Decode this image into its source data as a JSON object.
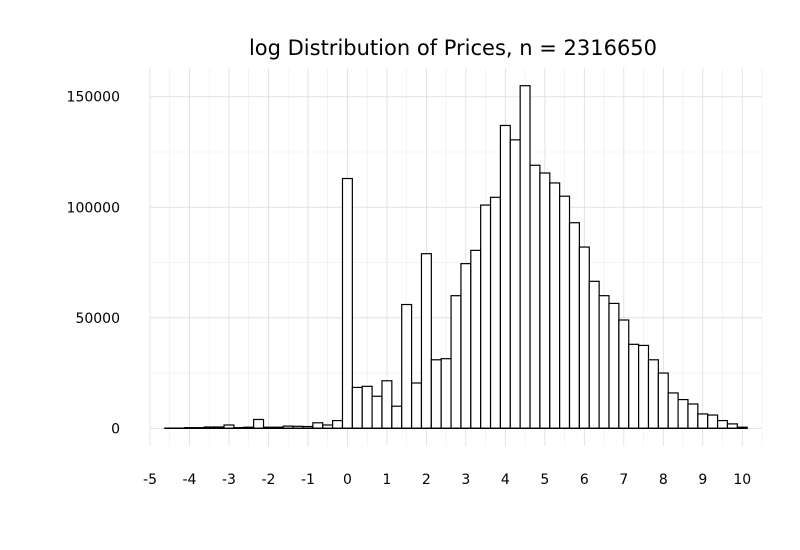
{
  "chart_data": {
    "type": "bar",
    "title": "log Distribution of Prices, n = 2316650",
    "xlabel": "",
    "ylabel": "",
    "xlim": [
      -5,
      10.5
    ],
    "ylim": [
      -8000,
      163000
    ],
    "x_ticks": [
      -5,
      -4,
      -3,
      -2,
      -1,
      0,
      1,
      2,
      3,
      4,
      5,
      6,
      7,
      8,
      9,
      10
    ],
    "x_tick_labels": [
      "-5",
      "-4",
      "-3",
      "-2",
      "-1",
      "0",
      "1",
      "2",
      "3",
      "4",
      "5",
      "6",
      "7",
      "8",
      "9",
      "10"
    ],
    "y_ticks": [
      0,
      50000,
      100000,
      150000
    ],
    "y_tick_labels": [
      "0",
      "50000",
      "100000",
      "150000"
    ],
    "grid": true,
    "bin_width": 0.25,
    "bin_lefts": [
      -4.625,
      -4.375,
      -4.125,
      -3.875,
      -3.625,
      -3.375,
      -3.125,
      -2.875,
      -2.625,
      -2.375,
      -2.125,
      -1.875,
      -1.625,
      -1.375,
      -1.125,
      -0.875,
      -0.625,
      -0.375,
      -0.125,
      0.125,
      0.375,
      0.625,
      0.875,
      1.125,
      1.375,
      1.625,
      1.875,
      2.125,
      2.375,
      2.625,
      2.875,
      3.125,
      3.375,
      3.625,
      3.875,
      4.125,
      4.375,
      4.625,
      4.875,
      5.125,
      5.375,
      5.625,
      5.875,
      6.125,
      6.375,
      6.625,
      6.875,
      7.125,
      7.375,
      7.625,
      7.875,
      8.125,
      8.375,
      8.625,
      8.875,
      9.125,
      9.375,
      9.625,
      9.875
    ],
    "values": [
      100,
      100,
      300,
      300,
      600,
      600,
      1500,
      300,
      500,
      4000,
      500,
      500,
      1000,
      900,
      800,
      2500,
      1500,
      3500,
      113000,
      18500,
      19000,
      14500,
      21500,
      10000,
      56000,
      20500,
      79000,
      31000,
      31500,
      60000,
      74500,
      80500,
      101000,
      104500,
      137000,
      130500,
      155000,
      119000,
      115500,
      111000,
      105000,
      93000,
      82000,
      66500,
      60000,
      56500,
      49000,
      38000,
      37500,
      31000,
      25000,
      16000,
      13000,
      11000,
      6500,
      6000,
      3500,
      2000,
      500
    ]
  }
}
